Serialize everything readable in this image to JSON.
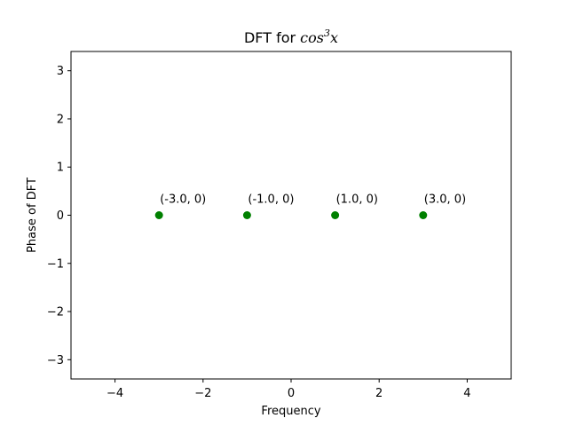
{
  "chart_data": {
    "type": "scatter",
    "title": {
      "prefix": "DFT for ",
      "math_base": "cos",
      "math_sup": "3",
      "math_var": "x"
    },
    "xlabel": "Frequency",
    "ylabel": "Phase of DFT",
    "xlim": [
      -5,
      5
    ],
    "ylim": [
      -3.4,
      3.4
    ],
    "xticks": [
      -4,
      -2,
      0,
      2,
      4
    ],
    "xtick_labels": [
      "−4",
      "−2",
      "0",
      "2",
      "4"
    ],
    "yticks": [
      -3,
      -2,
      -1,
      0,
      1,
      2,
      3
    ],
    "ytick_labels": [
      "−3",
      "−2",
      "−1",
      "0",
      "1",
      "2",
      "3"
    ],
    "grid": false,
    "marker_color": "#008000",
    "points": [
      {
        "x": -3.0,
        "y": 0,
        "label": "(-3.0, 0)"
      },
      {
        "x": -1.0,
        "y": 0,
        "label": "(-1.0, 0)"
      },
      {
        "x": 1.0,
        "y": 0,
        "label": "(1.0, 0)"
      },
      {
        "x": 3.0,
        "y": 0,
        "label": "(3.0, 0)"
      }
    ]
  }
}
